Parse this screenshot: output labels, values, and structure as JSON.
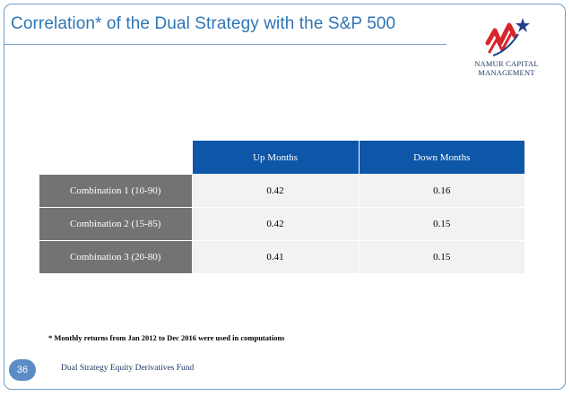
{
  "slide": {
    "title": "Correlation* of the Dual Strategy with the S&P 500",
    "logo": {
      "icon": "namur-capital-logo-icon",
      "line1": "NAMUR CAPITAL",
      "line2": "MANAGEMENT"
    },
    "table": {
      "headers": [
        "",
        "Up Months",
        "Down Months"
      ],
      "rows": [
        {
          "label": "Combination 1 (10-90)",
          "up": "0.42",
          "down": "0.16"
        },
        {
          "label": "Combination 2 (15-85)",
          "up": "0.42",
          "down": "0.15"
        },
        {
          "label": "Combination 3 (20-80)",
          "up": "0.41",
          "down": "0.15"
        }
      ]
    },
    "footnote": "* Monthly returns from Jan 2012 to Dec 2016 were used in computations",
    "footer": {
      "page_number": "36",
      "text": "Dual Strategy Equity Derivatives Fund"
    },
    "colors": {
      "title": "#2e74b5",
      "header_bg": "#0e56a8",
      "row_label_bg": "#737373",
      "cell_bg": "#f2f2f2",
      "frame": "#6f9bc8"
    }
  }
}
